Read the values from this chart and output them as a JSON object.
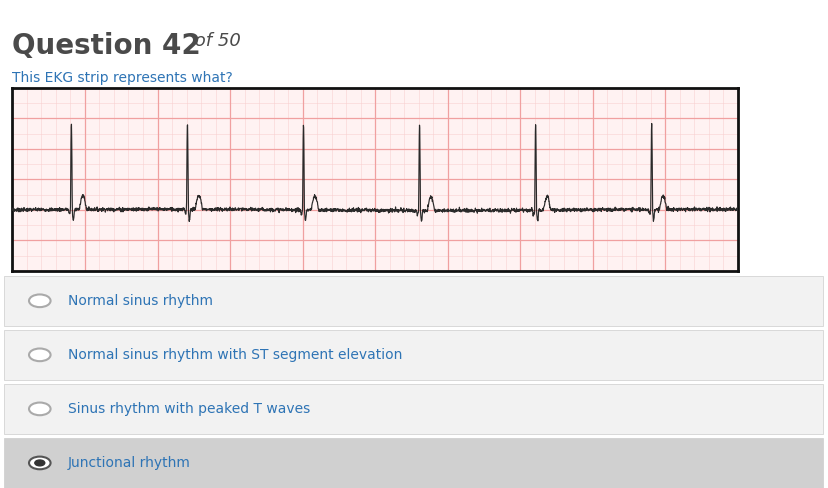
{
  "title_bold": "Question 42",
  "title_regular": " of 50",
  "subtitle": "This EKG strip represents what?",
  "title_color": "#4a4a4a",
  "title_bold_size": 20,
  "title_regular_size": 13,
  "subtitle_color": "#2e74b5",
  "subtitle_size": 10,
  "ekg_bg_color": "#fff2f2",
  "ekg_grid_major_color": "#f0a0a0",
  "ekg_grid_minor_color": "#f8d0d0",
  "ekg_line_color": "#2a2a2a",
  "ekg_border_color": "#111111",
  "options": [
    {
      "text": "Normal sinus rhythm",
      "selected": false
    },
    {
      "text": "Normal sinus rhythm with ST segment elevation",
      "selected": false
    },
    {
      "text": "Sinus rhythm with peaked T waves",
      "selected": false
    },
    {
      "text": "Junctional rhythm",
      "selected": true
    }
  ],
  "option_text_color": "#2e74b5",
  "option_bg_unselected": "#f2f2f2",
  "option_bg_selected": "#d0d0d0",
  "option_border_color": "#cccccc",
  "radio_selected_fill": "#333333",
  "radio_unselected_color": "#aaaaaa",
  "fig_bg": "#ffffff"
}
